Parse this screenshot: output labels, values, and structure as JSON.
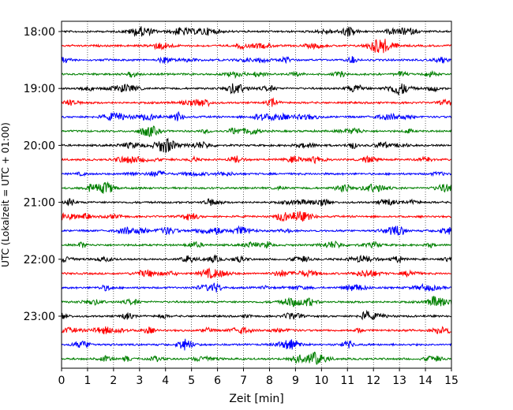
{
  "chart_data": {
    "type": "line",
    "title": "",
    "xlabel": "Zeit  [min]",
    "ylabel": "UTC (Lokalzeit = UTC + 01:00)",
    "xlim": [
      0,
      15
    ],
    "x_ticks": [
      "0",
      "1",
      "2",
      "3",
      "4",
      "5",
      "6",
      "7",
      "8",
      "9",
      "10",
      "11",
      "12",
      "13",
      "14",
      "15"
    ],
    "y_ticks": [
      "18:00",
      "19:00",
      "20:00",
      "21:00",
      "22:00",
      "23:00"
    ],
    "grid": "vertical dotted",
    "trace_minutes": 15,
    "colors": [
      "#000000",
      "#ff0000",
      "#0000ff",
      "#008000"
    ],
    "traces": [
      {
        "start": "18:00"
      },
      {
        "start": "18:15"
      },
      {
        "start": "18:30"
      },
      {
        "start": "18:45"
      },
      {
        "start": "19:00"
      },
      {
        "start": "19:15"
      },
      {
        "start": "19:30"
      },
      {
        "start": "19:45"
      },
      {
        "start": "20:00"
      },
      {
        "start": "20:15"
      },
      {
        "start": "20:30"
      },
      {
        "start": "20:45"
      },
      {
        "start": "21:00"
      },
      {
        "start": "21:15"
      },
      {
        "start": "21:30"
      },
      {
        "start": "21:45"
      },
      {
        "start": "22:00"
      },
      {
        "start": "22:15"
      },
      {
        "start": "22:30"
      },
      {
        "start": "22:45"
      },
      {
        "start": "23:00"
      },
      {
        "start": "23:15"
      },
      {
        "start": "23:30"
      },
      {
        "start": "23:45"
      }
    ]
  }
}
